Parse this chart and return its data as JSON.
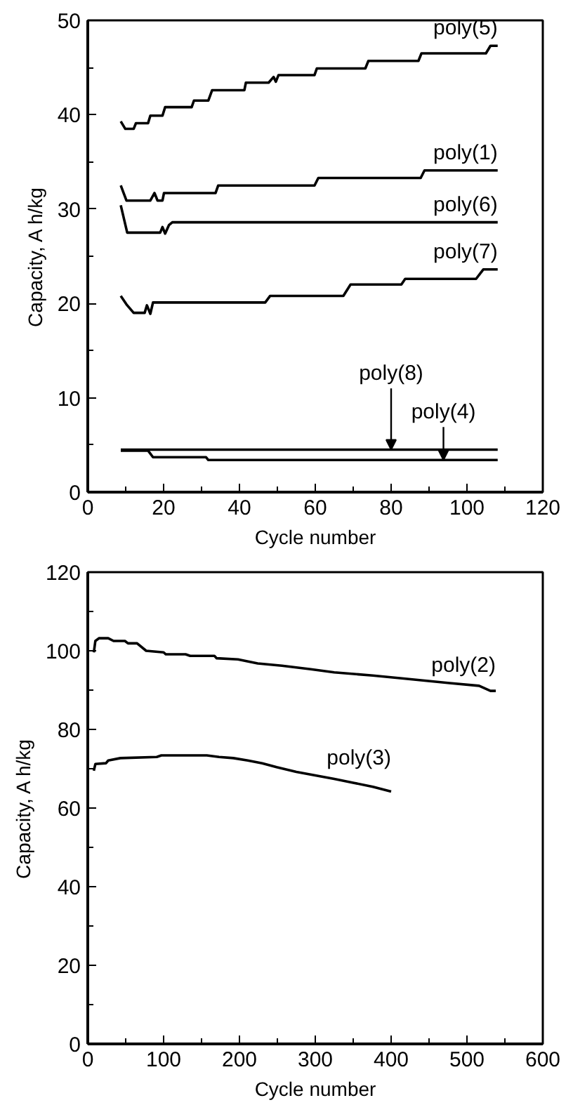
{
  "chart_data": [
    {
      "type": "line",
      "xlabel": "Cycle number",
      "ylabel": "Capacity, A h/kg",
      "xlim": [
        0,
        120
      ],
      "ylim": [
        0,
        50
      ],
      "xticks": [
        0,
        {
          "value": 10,
          "label": null
        },
        20,
        {
          "value": 30,
          "label": null
        },
        40,
        {
          "value": 50,
          "label": null
        },
        60,
        {
          "value": 70,
          "label": null
        },
        80,
        {
          "value": 90,
          "label": null
        },
        100,
        {
          "value": 110,
          "label": null
        },
        120
      ],
      "yticks": [
        0,
        {
          "value": 5,
          "label": null
        },
        10,
        {
          "value": 15,
          "label": null
        },
        20,
        {
          "value": 25,
          "label": null
        },
        30,
        {
          "value": 35,
          "label": null
        },
        40,
        {
          "value": 45,
          "label": null
        },
        50
      ],
      "series": [
        {
          "name": "poly(5)",
          "color": "#000000",
          "x": [
            8.7,
            9.9,
            12.1,
            12.7,
            15.9,
            16.5,
            19.7,
            20.4,
            27.4,
            28.0,
            31.8,
            32.8,
            41.3,
            41.7,
            47.7,
            49.0,
            49.6,
            50.3,
            59.8,
            60.4,
            73.2,
            74.0,
            87.2,
            88.0,
            105.0,
            106.2,
            108.1
          ],
          "values": [
            39.3,
            38.5,
            38.5,
            39.1,
            39.1,
            39.9,
            39.9,
            40.8,
            40.8,
            41.5,
            41.5,
            42.6,
            42.6,
            43.4,
            43.4,
            44.0,
            43.5,
            44.2,
            44.2,
            44.9,
            44.9,
            45.7,
            45.7,
            46.5,
            46.5,
            47.3,
            47.3
          ]
        },
        {
          "name": "poly(1)",
          "color": "#000000",
          "x": [
            8.7,
            10.2,
            16.5,
            17.6,
            18.4,
            19.7,
            20.1,
            33.7,
            34.4,
            59.8,
            60.8,
            87.8,
            88.8,
            108.1
          ],
          "values": [
            32.5,
            30.9,
            30.9,
            31.7,
            30.9,
            30.9,
            31.7,
            31.7,
            32.5,
            32.5,
            33.3,
            33.3,
            34.1,
            34.1
          ]
        },
        {
          "name": "poly(6)",
          "color": "#000000",
          "x": [
            8.7,
            10.4,
            19.1,
            19.7,
            20.4,
            21.4,
            22.3,
            108.1
          ],
          "values": [
            30.4,
            27.5,
            27.5,
            28.1,
            27.4,
            28.3,
            28.6,
            28.6
          ]
        },
        {
          "name": "poly(7)",
          "color": "#000000",
          "x": [
            8.7,
            10.2,
            12.1,
            15.0,
            15.6,
            16.5,
            17.2,
            46.8,
            48.1,
            67.4,
            69.3,
            82.7,
            83.7,
            102.4,
            104.3,
            108.1
          ],
          "values": [
            20.8,
            19.9,
            19.0,
            19.0,
            19.8,
            18.9,
            20.1,
            20.1,
            20.8,
            20.8,
            22.0,
            22.0,
            22.6,
            22.6,
            23.6,
            23.6
          ]
        },
        {
          "color": "#000000",
          "x": [
            8.7,
            108.1
          ],
          "values": [
            4.5,
            4.5
          ]
        },
        {
          "color": "#000000",
          "x": [
            8.7,
            15.9,
            17.2,
            31.2,
            31.8,
            108.1
          ],
          "values": [
            4.4,
            4.4,
            3.7,
            3.7,
            3.4,
            3.4
          ]
        }
      ],
      "annotations": [
        {
          "text": "poly(8)",
          "x": 80,
          "y": 4.5
        },
        {
          "text": "poly(4)",
          "x": 93.8,
          "y": 3.4
        }
      ]
    },
    {
      "type": "line",
      "xlabel": "Cycle number",
      "ylabel": "Capacity, A h/kg",
      "xlim": [
        0,
        600
      ],
      "ylim": [
        0,
        120
      ],
      "xticks": [
        0,
        {
          "value": 50,
          "label": null
        },
        100,
        {
          "value": 150,
          "label": null
        },
        200,
        {
          "value": 250,
          "label": null
        },
        300,
        {
          "value": 350,
          "label": null
        },
        400,
        {
          "value": 450,
          "label": null
        },
        500,
        {
          "value": 550,
          "label": null
        },
        600
      ],
      "yticks": [
        0,
        {
          "value": 10,
          "label": null
        },
        20,
        {
          "value": 30,
          "label": null
        },
        40,
        {
          "value": 50,
          "label": null
        },
        60,
        {
          "value": 70,
          "label": null
        },
        80,
        {
          "value": 90,
          "label": null
        },
        100,
        {
          "value": 110,
          "label": null
        },
        120
      ],
      "series": [
        {
          "name": "poly(2)",
          "color": "#000000",
          "x": [
            8,
            10,
            15,
            27,
            34,
            49,
            53,
            65,
            77,
            100,
            103,
            129,
            135,
            167,
            170,
            198,
            224,
            256,
            294,
            325,
            376,
            414,
            477,
            516,
            531,
            538
          ],
          "values": [
            99.6,
            102.5,
            103.2,
            103.2,
            102.5,
            102.5,
            101.9,
            101.9,
            100.0,
            99.6,
            99.1,
            99.1,
            98.7,
            98.7,
            98.1,
            97.8,
            96.8,
            96.2,
            95.3,
            94.5,
            93.7,
            93.0,
            91.8,
            91.1,
            89.8,
            89.8
          ]
        },
        {
          "name": "poly(3)",
          "color": "#000000",
          "x": [
            8,
            10,
            24,
            27,
            43,
            91,
            97,
            157,
            173,
            192,
            211,
            230,
            249,
            275,
            300,
            325,
            351,
            376,
            400
          ],
          "values": [
            69.5,
            71.2,
            71.4,
            72.1,
            72.7,
            73.0,
            73.4,
            73.4,
            73.0,
            72.7,
            72.1,
            71.4,
            70.4,
            69.2,
            68.3,
            67.4,
            66.4,
            65.4,
            64.2
          ]
        }
      ]
    }
  ]
}
